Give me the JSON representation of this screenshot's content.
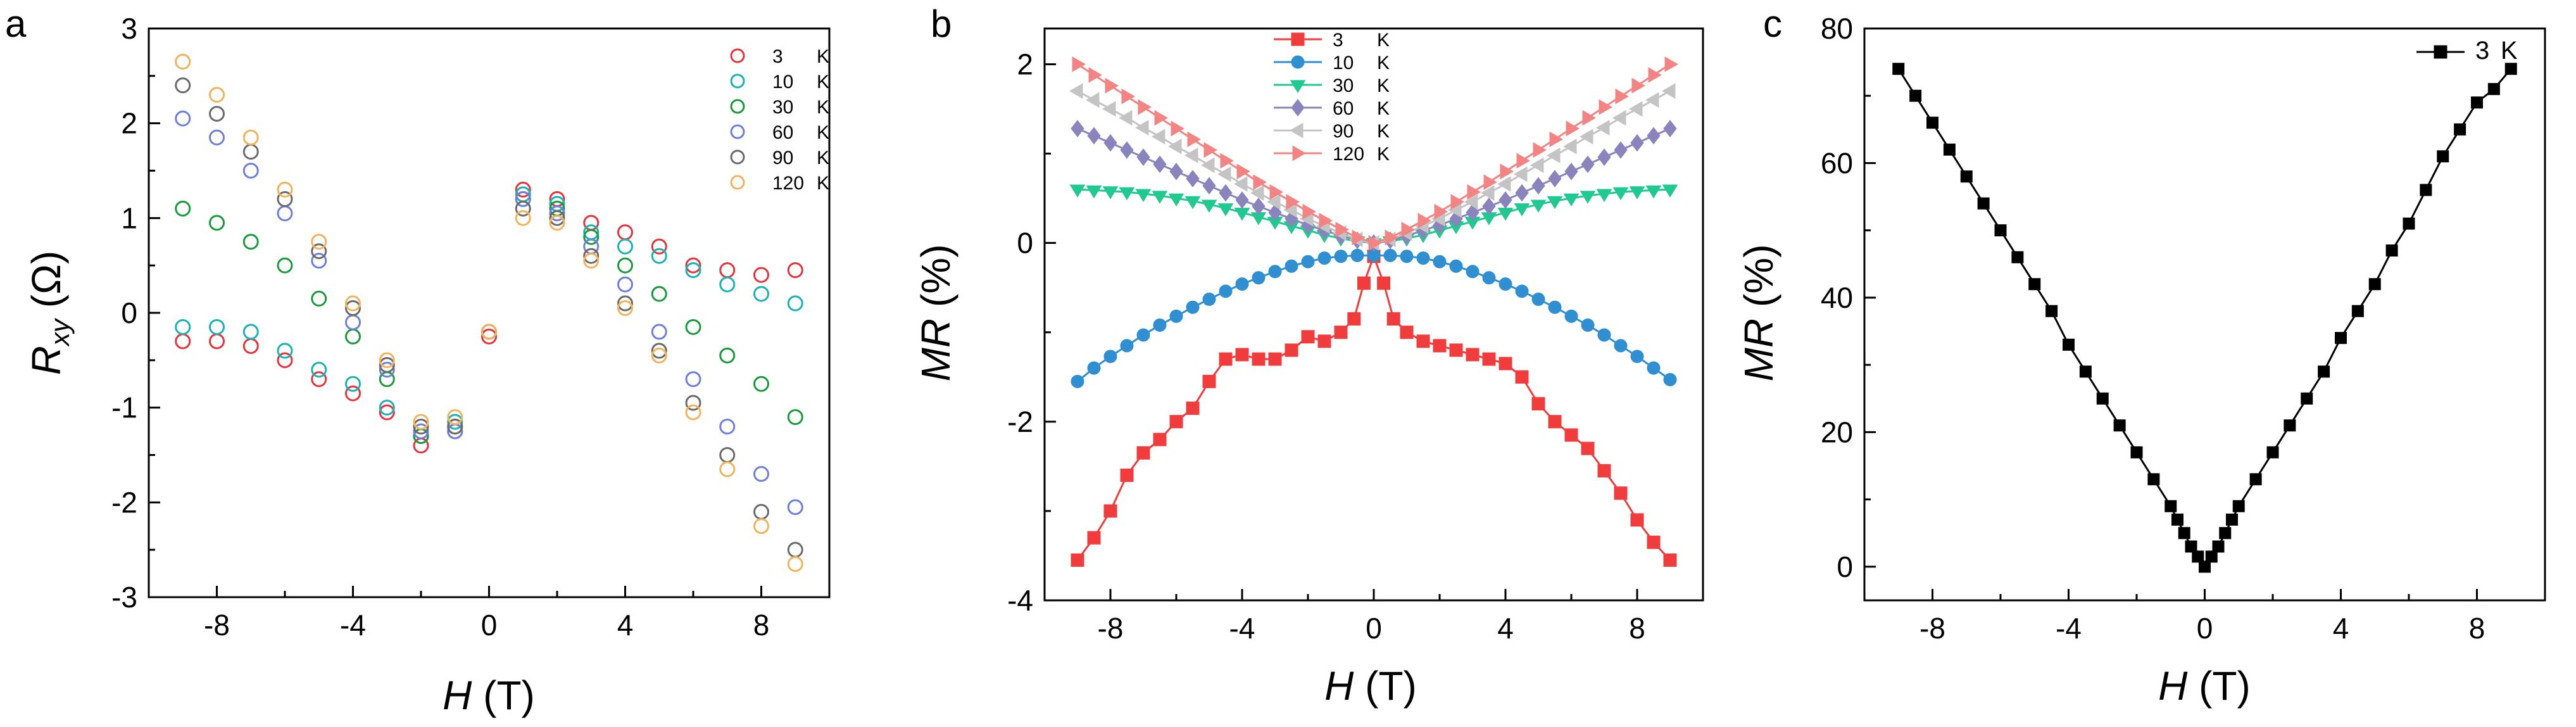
{
  "figure": {
    "panel_labels": [
      "a",
      "b",
      "c"
    ],
    "x_label_italic": "H",
    "x_label_unit": " (T)"
  },
  "chart_data": [
    {
      "type": "scatter",
      "panel": "a",
      "ylabel_main": "R",
      "ylabel_sub": "xy",
      "ylabel_unit": " (Ω)",
      "xlim": [
        -10,
        10
      ],
      "ylim": [
        -3,
        3
      ],
      "xticks": [
        -8,
        -4,
        0,
        4,
        8
      ],
      "yticks": [
        -3,
        -2,
        -1,
        0,
        1,
        2,
        3
      ],
      "legend": "top-right",
      "series": [
        {
          "name": "3",
          "unit": "K",
          "color": "#e8323c",
          "x": [
            -9,
            -8,
            -7,
            -6,
            -5,
            -4,
            -3,
            -2,
            -1,
            0,
            1,
            2,
            3,
            4,
            5,
            6,
            7,
            8,
            9
          ],
          "y": [
            -0.3,
            -0.3,
            -0.35,
            -0.5,
            -0.7,
            -0.85,
            -1.05,
            -1.4,
            -1.2,
            -0.25,
            1.3,
            1.2,
            0.95,
            0.85,
            0.7,
            0.5,
            0.45,
            0.4,
            0.45
          ]
        },
        {
          "name": "10",
          "unit": "K",
          "color": "#1ab3b3",
          "x": [
            -9,
            -8,
            -7,
            -6,
            -5,
            -4,
            -3,
            -2,
            -1,
            0,
            1,
            2,
            3,
            4,
            5,
            6,
            7,
            8,
            9
          ],
          "y": [
            -0.15,
            -0.15,
            -0.2,
            -0.4,
            -0.6,
            -0.75,
            -1.0,
            -1.3,
            -1.15,
            -0.2,
            1.25,
            1.15,
            0.85,
            0.7,
            0.6,
            0.45,
            0.3,
            0.2,
            0.1
          ]
        },
        {
          "name": "30",
          "unit": "K",
          "color": "#1a9a3c",
          "x": [
            -9,
            -8,
            -7,
            -6,
            -5,
            -4,
            -3,
            -2,
            -1,
            0,
            1,
            2,
            3,
            4,
            5,
            6,
            7,
            8,
            9
          ],
          "y": [
            1.1,
            0.95,
            0.75,
            0.5,
            0.15,
            -0.25,
            -0.7,
            -1.3,
            -1.25,
            -0.2,
            1.2,
            1.1,
            0.8,
            0.5,
            0.2,
            -0.15,
            -0.45,
            -0.75,
            -1.1
          ]
        },
        {
          "name": "60",
          "unit": "K",
          "color": "#6f7fd9",
          "x": [
            -9,
            -8,
            -7,
            -6,
            -5,
            -4,
            -3,
            -2,
            -1,
            0,
            1,
            2,
            3,
            4,
            5,
            6,
            7,
            8,
            9
          ],
          "y": [
            2.05,
            1.85,
            1.5,
            1.05,
            0.55,
            -0.1,
            -0.6,
            -1.25,
            -1.25,
            -0.2,
            1.2,
            1.05,
            0.7,
            0.3,
            -0.2,
            -0.7,
            -1.2,
            -1.7,
            -2.05
          ]
        },
        {
          "name": "90",
          "unit": "K",
          "color": "#6a6a6a",
          "x": [
            -9,
            -8,
            -7,
            -6,
            -5,
            -4,
            -3,
            -2,
            -1,
            0,
            1,
            2,
            3,
            4,
            5,
            6,
            7,
            8,
            9
          ],
          "y": [
            2.4,
            2.1,
            1.7,
            1.2,
            0.65,
            0.05,
            -0.55,
            -1.2,
            -1.2,
            -0.2,
            1.1,
            1.0,
            0.6,
            0.1,
            -0.4,
            -0.95,
            -1.5,
            -2.1,
            -2.5
          ]
        },
        {
          "name": "120",
          "unit": "K",
          "color": "#f5b25c",
          "x": [
            -9,
            -8,
            -7,
            -6,
            -5,
            -4,
            -3,
            -2,
            -1,
            0,
            1,
            2,
            3,
            4,
            5,
            6,
            7,
            8,
            9
          ],
          "y": [
            2.65,
            2.3,
            1.85,
            1.3,
            0.75,
            0.1,
            -0.5,
            -1.15,
            -1.1,
            -0.2,
            1.0,
            0.95,
            0.55,
            0.05,
            -0.45,
            -1.05,
            -1.65,
            -2.25,
            -2.65
          ]
        }
      ]
    },
    {
      "type": "line",
      "panel": "b",
      "ylabel_italic": "MR",
      "ylabel_unit": " (%)",
      "xlim": [
        -10,
        10
      ],
      "ylim": [
        -4,
        2.4
      ],
      "xticks": [
        -8,
        -4,
        0,
        4,
        8
      ],
      "yticks": [
        -4,
        -2,
        0,
        2
      ],
      "legend": "top-center",
      "series": [
        {
          "name": "3",
          "unit": "K",
          "color": "#f03c3c",
          "marker": "square",
          "x": [
            -9,
            -8.5,
            -8,
            -7.5,
            -7,
            -6.5,
            -6,
            -5.5,
            -5,
            -4.5,
            -4,
            -3.5,
            -3,
            -2.5,
            -2,
            -1.5,
            -1,
            -0.6,
            -0.3,
            0,
            0.3,
            0.6,
            1,
            1.5,
            2,
            2.5,
            3,
            3.5,
            4,
            4.5,
            5,
            5.5,
            6,
            6.5,
            7,
            7.5,
            8,
            8.5,
            9
          ],
          "y": [
            -3.55,
            -3.3,
            -3.0,
            -2.6,
            -2.35,
            -2.2,
            -2.0,
            -1.85,
            -1.55,
            -1.3,
            -1.25,
            -1.3,
            -1.3,
            -1.2,
            -1.05,
            -1.1,
            -1.0,
            -0.85,
            -0.45,
            -0.15,
            -0.45,
            -0.85,
            -1.0,
            -1.1,
            -1.15,
            -1.2,
            -1.25,
            -1.3,
            -1.35,
            -1.5,
            -1.8,
            -2.0,
            -2.15,
            -2.3,
            -2.55,
            -2.8,
            -3.1,
            -3.35,
            -3.55
          ]
        },
        {
          "name": "10",
          "unit": "K",
          "color": "#2f8fd0",
          "marker": "circle",
          "x": [
            -9,
            -8.5,
            -8,
            -7.5,
            -7,
            -6.5,
            -6,
            -5.5,
            -5,
            -4.5,
            -4,
            -3.5,
            -3,
            -2.5,
            -2,
            -1.5,
            -1,
            -0.5,
            0,
            0.5,
            1,
            1.5,
            2,
            2.5,
            3,
            3.5,
            4,
            4.5,
            5,
            5.5,
            6,
            6.5,
            7,
            7.5,
            8,
            8.5,
            9
          ],
          "y": [
            -1.55,
            -1.4,
            -1.27,
            -1.15,
            -1.03,
            -0.92,
            -0.82,
            -0.72,
            -0.63,
            -0.54,
            -0.46,
            -0.39,
            -0.32,
            -0.26,
            -0.21,
            -0.17,
            -0.15,
            -0.14,
            -0.14,
            -0.14,
            -0.15,
            -0.17,
            -0.21,
            -0.26,
            -0.32,
            -0.39,
            -0.46,
            -0.54,
            -0.63,
            -0.72,
            -0.82,
            -0.92,
            -1.03,
            -1.15,
            -1.27,
            -1.4,
            -1.53
          ]
        },
        {
          "name": "30",
          "unit": "K",
          "color": "#1fc98f",
          "marker": "triangle-down",
          "x": [
            -9,
            -8.5,
            -8,
            -7.5,
            -7,
            -6.5,
            -6,
            -5.5,
            -5,
            -4.5,
            -4,
            -3.5,
            -3,
            -2.5,
            -2,
            -1.5,
            -1,
            -0.5,
            0,
            0.5,
            1,
            1.5,
            2,
            2.5,
            3,
            3.5,
            4,
            4.5,
            5,
            5.5,
            6,
            6.5,
            7,
            7.5,
            8,
            8.5,
            9
          ],
          "y": [
            0.6,
            0.59,
            0.58,
            0.57,
            0.55,
            0.53,
            0.5,
            0.47,
            0.43,
            0.39,
            0.34,
            0.29,
            0.24,
            0.19,
            0.14,
            0.09,
            0.05,
            0.02,
            0.0,
            0.02,
            0.05,
            0.09,
            0.14,
            0.19,
            0.24,
            0.29,
            0.34,
            0.39,
            0.43,
            0.47,
            0.5,
            0.53,
            0.55,
            0.57,
            0.58,
            0.59,
            0.6
          ]
        },
        {
          "name": "60",
          "unit": "K",
          "color": "#8a84bc",
          "marker": "diamond",
          "x": [
            -9,
            -8.5,
            -8,
            -7.5,
            -7,
            -6.5,
            -6,
            -5.5,
            -5,
            -4.5,
            -4,
            -3.5,
            -3,
            -2.5,
            -2,
            -1.5,
            -1,
            -0.5,
            0,
            0.5,
            1,
            1.5,
            2,
            2.5,
            3,
            3.5,
            4,
            4.5,
            5,
            5.5,
            6,
            6.5,
            7,
            7.5,
            8,
            8.5,
            9
          ],
          "y": [
            1.28,
            1.2,
            1.12,
            1.04,
            0.96,
            0.88,
            0.8,
            0.72,
            0.64,
            0.56,
            0.48,
            0.41,
            0.34,
            0.27,
            0.2,
            0.14,
            0.08,
            0.03,
            0.0,
            0.03,
            0.08,
            0.14,
            0.2,
            0.27,
            0.34,
            0.41,
            0.48,
            0.56,
            0.64,
            0.72,
            0.8,
            0.88,
            0.96,
            1.04,
            1.12,
            1.2,
            1.28
          ]
        },
        {
          "name": "90",
          "unit": "K",
          "color": "#c4c4c4",
          "marker": "triangle-left",
          "x": [
            -9,
            -8.5,
            -8,
            -7.5,
            -7,
            -6.5,
            -6,
            -5.5,
            -5,
            -4.5,
            -4,
            -3.5,
            -3,
            -2.5,
            -2,
            -1.5,
            -1,
            -0.5,
            0,
            0.5,
            1,
            1.5,
            2,
            2.5,
            3,
            3.5,
            4,
            4.5,
            5,
            5.5,
            6,
            6.5,
            7,
            7.5,
            8,
            8.5,
            9
          ],
          "y": [
            1.7,
            1.6,
            1.5,
            1.4,
            1.29,
            1.19,
            1.08,
            0.98,
            0.87,
            0.77,
            0.66,
            0.56,
            0.46,
            0.37,
            0.27,
            0.19,
            0.11,
            0.04,
            0.0,
            0.04,
            0.11,
            0.19,
            0.27,
            0.37,
            0.46,
            0.56,
            0.66,
            0.77,
            0.87,
            0.98,
            1.08,
            1.19,
            1.29,
            1.4,
            1.5,
            1.6,
            1.7
          ]
        },
        {
          "name": "120",
          "unit": "K",
          "color": "#f28484",
          "marker": "triangle-right",
          "x": [
            -9,
            -8.5,
            -8,
            -7.5,
            -7,
            -6.5,
            -6,
            -5.5,
            -5,
            -4.5,
            -4,
            -3.5,
            -3,
            -2.5,
            -2,
            -1.5,
            -1,
            -0.5,
            0,
            0.5,
            1,
            1.5,
            2,
            2.5,
            3,
            3.5,
            4,
            4.5,
            5,
            5.5,
            6,
            6.5,
            7,
            7.5,
            8,
            8.5,
            9
          ],
          "y": [
            2.0,
            1.88,
            1.76,
            1.64,
            1.52,
            1.4,
            1.28,
            1.16,
            1.04,
            0.92,
            0.8,
            0.68,
            0.57,
            0.46,
            0.35,
            0.25,
            0.15,
            0.06,
            0.0,
            0.06,
            0.15,
            0.25,
            0.35,
            0.46,
            0.57,
            0.68,
            0.8,
            0.92,
            1.04,
            1.16,
            1.28,
            1.4,
            1.52,
            1.64,
            1.76,
            1.88,
            2.0
          ]
        }
      ]
    },
    {
      "type": "line",
      "panel": "c",
      "ylabel_italic": "MR",
      "ylabel_unit": " (%)",
      "xlim": [
        -10,
        10
      ],
      "ylim": [
        -5,
        80
      ],
      "xticks": [
        -8,
        -4,
        0,
        4,
        8
      ],
      "yticks": [
        0,
        20,
        40,
        60,
        80
      ],
      "legend": "top-right",
      "series": [
        {
          "name": "3",
          "unit": "K",
          "color": "#000000",
          "marker": "square",
          "x": [
            -9,
            -8.5,
            -8,
            -7.5,
            -7,
            -6.5,
            -6,
            -5.5,
            -5,
            -4.5,
            -4,
            -3.5,
            -3,
            -2.5,
            -2,
            -1.5,
            -1,
            -0.8,
            -0.6,
            -0.4,
            -0.2,
            0,
            0.2,
            0.4,
            0.6,
            0.8,
            1,
            1.5,
            2,
            2.5,
            3,
            3.5,
            4,
            4.5,
            5,
            5.5,
            6,
            6.5,
            7,
            7.5,
            8,
            8.5,
            9
          ],
          "y": [
            74,
            70,
            66,
            62,
            58,
            54,
            50,
            46,
            42,
            38,
            33,
            29,
            25,
            21,
            17,
            13,
            9,
            7,
            5,
            3,
            1.5,
            0,
            1.5,
            3,
            5,
            7,
            9,
            13,
            17,
            21,
            25,
            29,
            34,
            38,
            42,
            47,
            51,
            56,
            61,
            65,
            69,
            71,
            74
          ]
        }
      ]
    }
  ]
}
